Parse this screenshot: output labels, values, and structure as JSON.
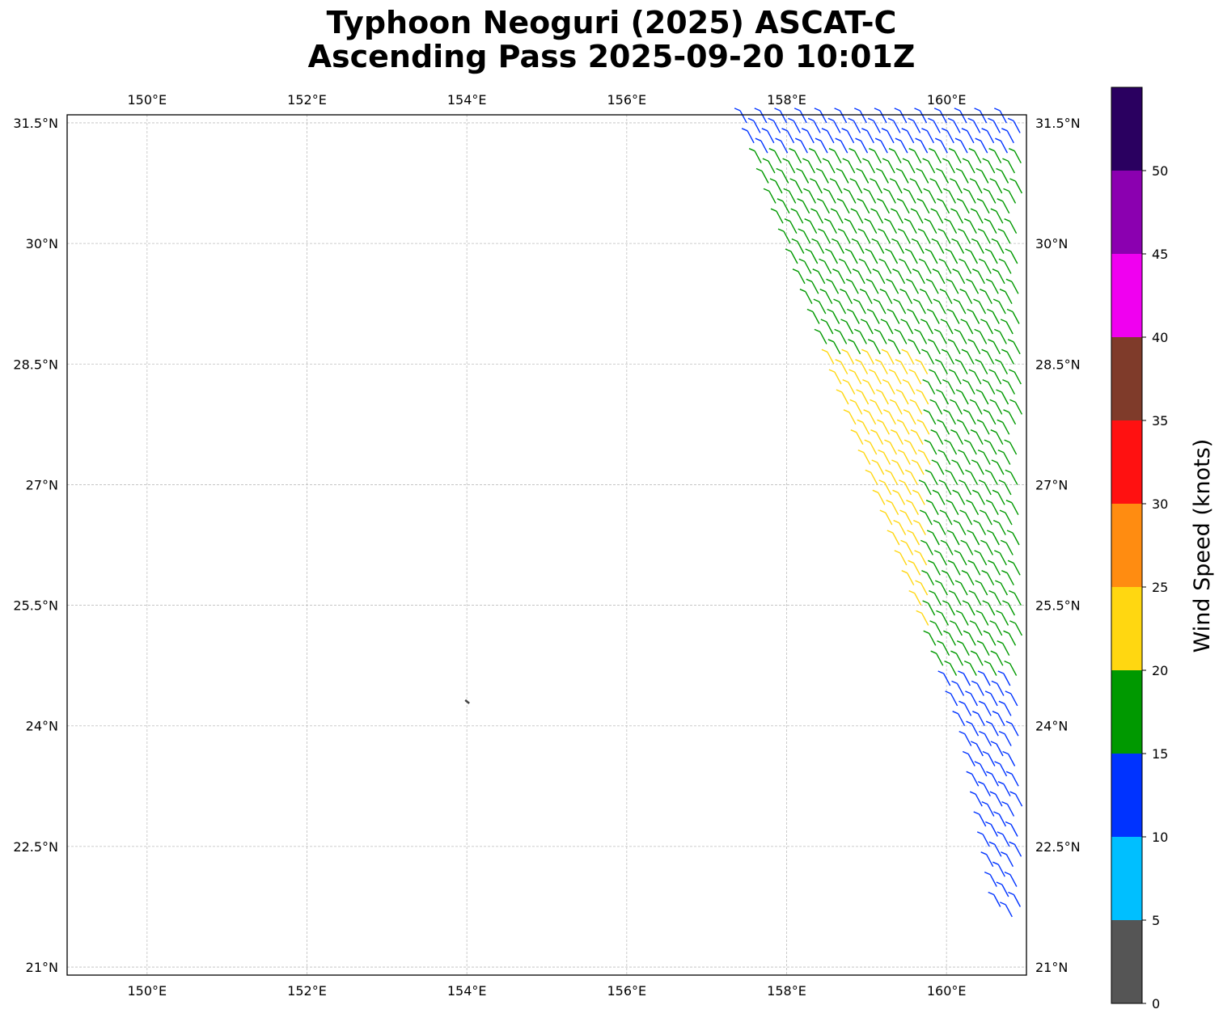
{
  "figure": {
    "title_line1": "Typhoon Neoguri (2025) ASCAT-C",
    "title_line2": "Ascending Pass 2025-09-20 10:01Z"
  },
  "map": {
    "lon_range": [
      149.0,
      161.0
    ],
    "lat_range": [
      20.9,
      31.6
    ],
    "lon_ticks": [
      150,
      152,
      154,
      156,
      158,
      160
    ],
    "lon_tick_labels": [
      "150°E",
      "152°E",
      "154°E",
      "156°E",
      "158°E",
      "160°E"
    ],
    "lat_ticks": [
      21,
      22.5,
      24,
      25.5,
      27,
      28.5,
      30,
      31.5
    ],
    "lat_tick_labels": [
      "21°N",
      "22.5°N",
      "24°N",
      "25.5°N",
      "27°N",
      "28.5°N",
      "30°N",
      "31.5°N"
    ],
    "grid": true,
    "land_marker": {
      "lon": 154.0,
      "lat": 24.3
    },
    "swath_edge": [
      [
        157.5,
        31.5
      ],
      [
        160.3,
        23.8
      ],
      [
        160.7,
        21.6
      ]
    ],
    "barb_segments": [
      {
        "lat_from": 31.5,
        "lat_to": 31.0,
        "color": "#0033ff"
      },
      {
        "lat_from": 31.0,
        "lat_to": 28.5,
        "color": "#009900"
      },
      {
        "lat_from": 28.5,
        "lat_to": 25.2,
        "color": "#ffd711",
        "east_limit": 159.8
      },
      {
        "lat_from": 28.5,
        "lat_to": 24.6,
        "color": "#009900",
        "west_limit": 159.8
      },
      {
        "lat_from": 24.6,
        "lat_to": 23.6,
        "color": "#0033ff"
      },
      {
        "lat_from": 23.6,
        "lat_to": 21.5,
        "color": "#0033ff"
      }
    ]
  },
  "colorbar": {
    "label": "Wind Speed (knots)",
    "ticks": [
      0,
      5,
      10,
      15,
      20,
      25,
      30,
      35,
      40,
      45,
      50
    ],
    "tick_labels": [
      "0",
      "5",
      "10",
      "15",
      "20",
      "25",
      "30",
      "35",
      "40",
      "45",
      "50"
    ],
    "max": 55,
    "colors": [
      "#555555",
      "#00bfff",
      "#0033ff",
      "#009900",
      "#ffd711",
      "#ff8c11",
      "#ff1111",
      "#7f3b2a",
      "#f000f0",
      "#8b00b0",
      "#2a0060"
    ]
  }
}
